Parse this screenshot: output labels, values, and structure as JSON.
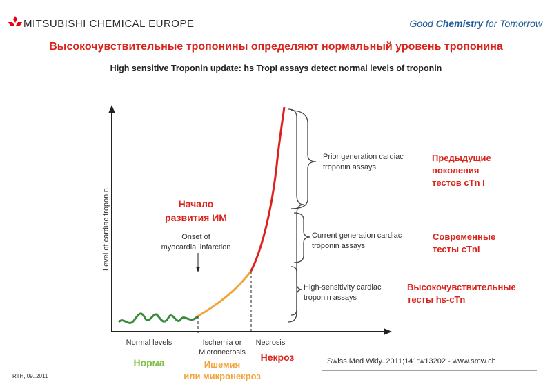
{
  "header": {
    "company_name": "MITSUBISHI CHEMICAL EUROPE",
    "slogan_part1": "Good ",
    "slogan_bold": "Chemistry",
    "slogan_part2": " for Tomorrow",
    "logo_icon": "mitsubishi-diamonds-icon"
  },
  "title_ru": "Высокочувствительные тропонины определяют нормальный уровень тропонина",
  "title_en": "High sensitive Troponin update: hs TropI assays detect normal levels of troponin",
  "diagram": {
    "y_axis_label": "Level of cardiac troponin",
    "onset_ru_line1": "Начало",
    "onset_ru_line2": "развития ИМ",
    "onset_en_line1": "Onset of",
    "onset_en_line2": "myocardial infarction",
    "brackets": [
      {
        "en_line1": "Prior generation cardiac",
        "en_line2": "troponin assays",
        "ru_line1": "Предыдущие",
        "ru_line2": "поколения",
        "ru_line3": "тестов cTn I"
      },
      {
        "en_line1": "Current generation cardiac",
        "en_line2": "troponin assays",
        "ru_line1": "Современные",
        "ru_line2": "тесты cTnI"
      },
      {
        "en_line1": "High-sensitivity cardiac",
        "en_line2": "troponin assays",
        "ru_line1": "Высокочувствительные",
        "ru_line2": "тесты hs-cTn"
      }
    ],
    "x_phases": [
      {
        "en": "Normal levels",
        "ru": "Норма",
        "ru_color": "#7dc142"
      },
      {
        "en_line1": "Ischemia or",
        "en_line2": "Micronecrosis",
        "ru_line1": "Ишемия",
        "ru_line2": "или микронекроз",
        "ru_color": "#f2a33a"
      },
      {
        "en": "Necrosis",
        "ru": "Некроз",
        "ru_color": "#d9241c"
      }
    ],
    "curve_colors": {
      "normal": "#3a8a3a",
      "ischemia": "#f2a33a",
      "necrosis": "#e0201c"
    },
    "source": "Swiss Med Wkly. 2011;141:w13202 - www.smw.ch"
  },
  "footer_left": "RTH, 09..2011"
}
